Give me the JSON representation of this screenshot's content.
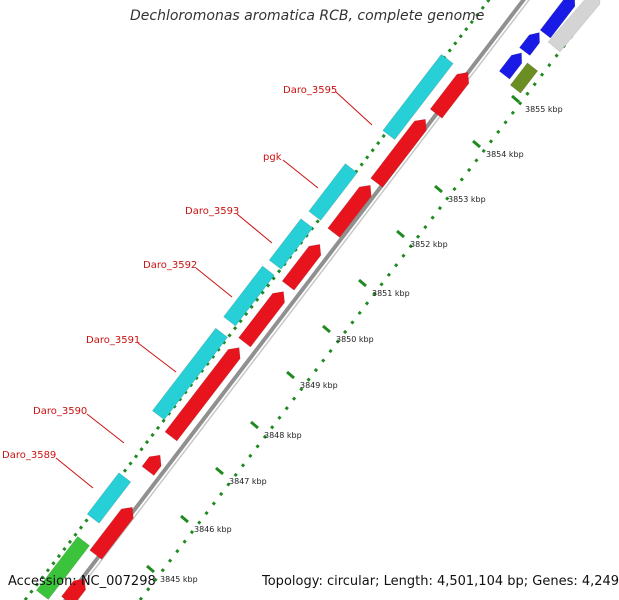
{
  "title": "Dechloromonas aromatica RCB, complete genome",
  "accession_label": "Accession: NC_007298",
  "topology_label": "Topology: circular; Length: 4,501,104 bp; Genes: 4,249",
  "colors": {
    "cds": "#e8141d",
    "gene": "#27cfd6",
    "rna": "#3bc43b",
    "other_strand": "#1a1ae6",
    "feature_olive": "#6b8e23",
    "backbone": "#909090",
    "ticks": "#1f8a1f",
    "labels": "#cc1111"
  },
  "gene_labels": [
    "Daro_3595",
    "pgk",
    "Daro_3593",
    "Daro_3592",
    "Daro_3591",
    "Daro_3590",
    "Daro_3589"
  ],
  "tick_labels": [
    "3855 kbp",
    "3854 kbp",
    "3853 kbp",
    "3852 kbp",
    "3851 kbp",
    "3850 kbp",
    "3849 kbp",
    "3848 kbp",
    "3847 kbp",
    "3846 kbp",
    "3845 kbp"
  ]
}
